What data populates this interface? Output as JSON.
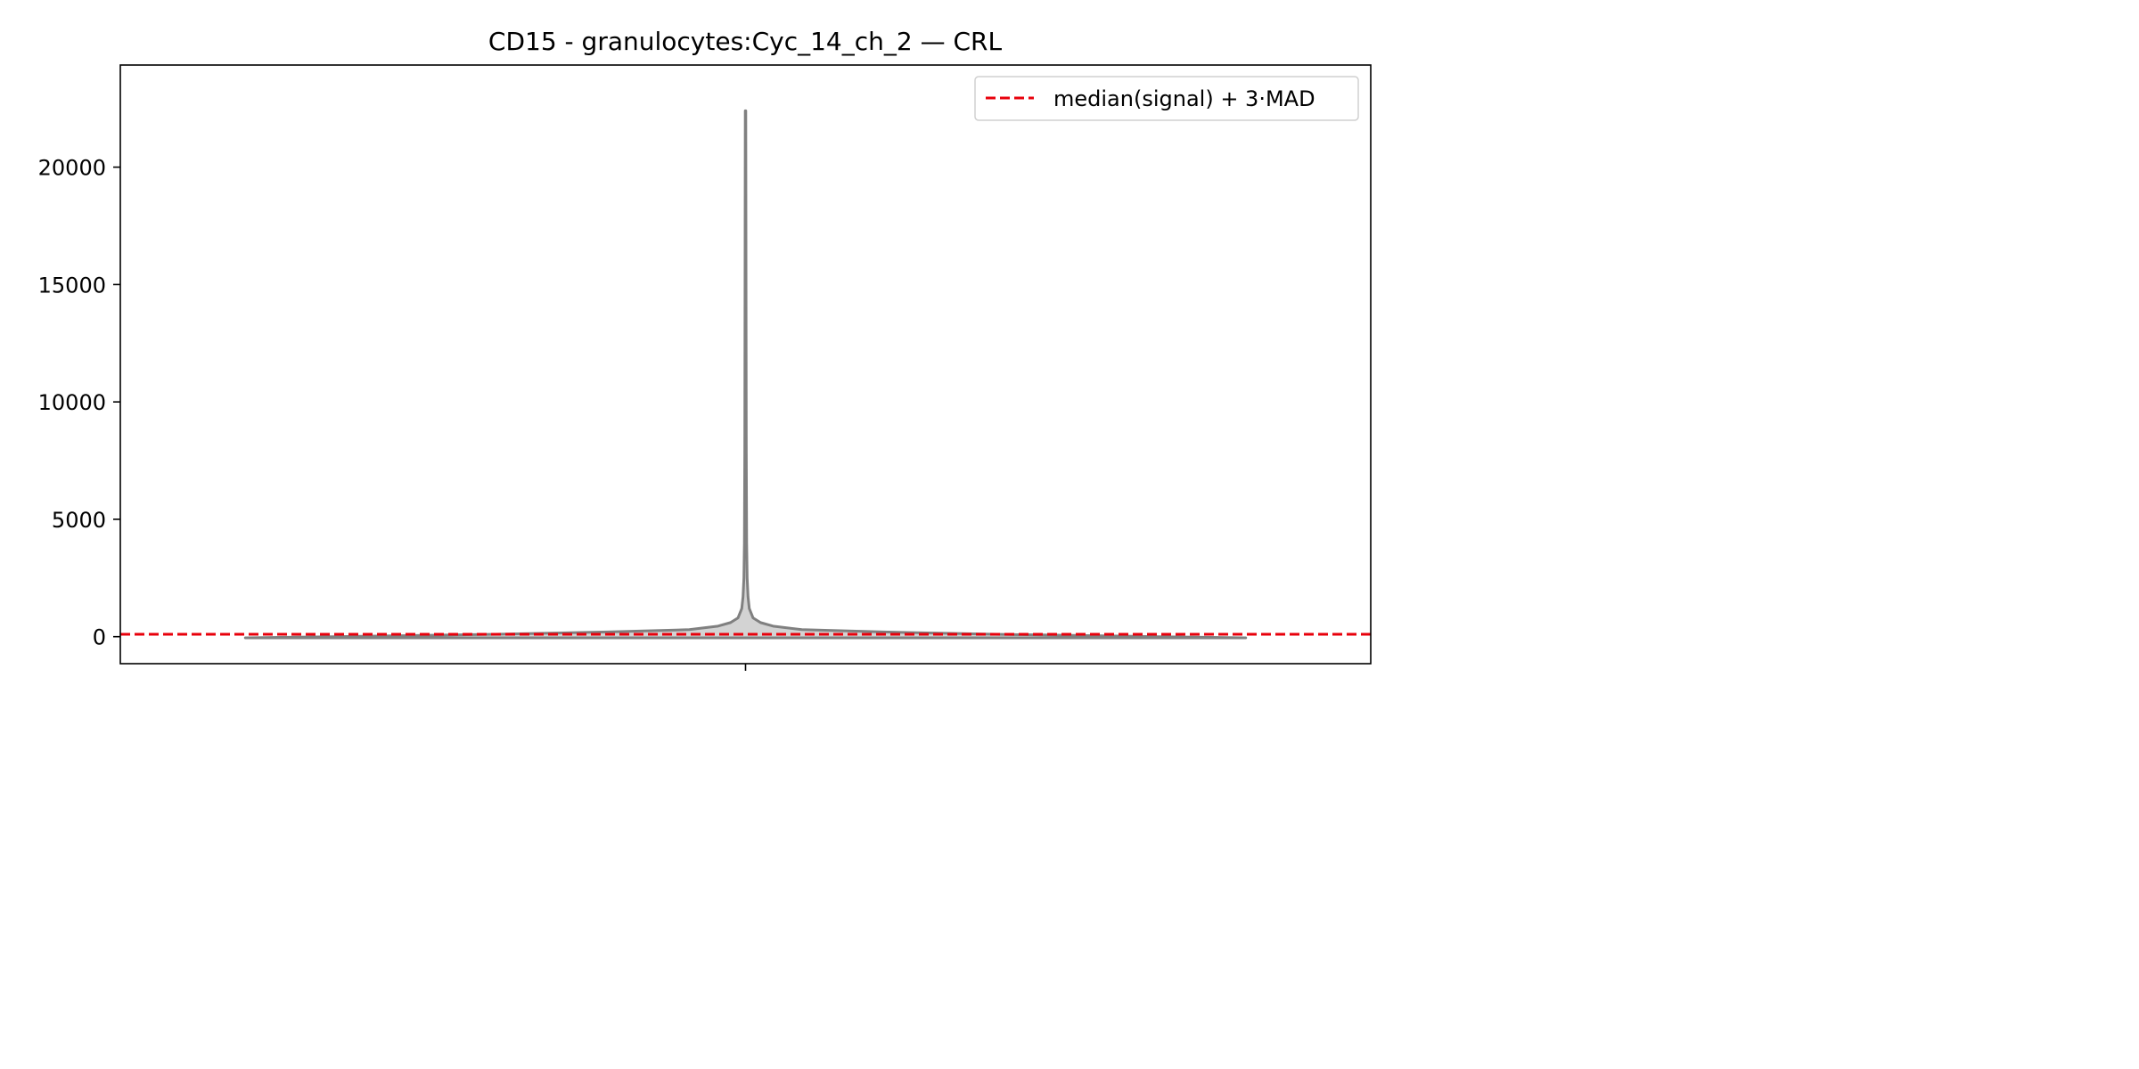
{
  "chart_data": {
    "type": "violin",
    "title": "CD15 - granulocytes:Cyc_14_ch_2 — CRL",
    "xlabel": "",
    "ylabel": "",
    "x_tick_labels": [
      ""
    ],
    "ylim": [
      -1150,
      24350
    ],
    "yticks": [
      0,
      5000,
      10000,
      15000,
      20000
    ],
    "ytick_labels": [
      "0",
      "5000",
      "10000",
      "15000",
      "20000"
    ],
    "grid": false,
    "legend": {
      "placement": "top-right",
      "entries": [
        "median(signal) + 3·MAD"
      ]
    },
    "threshold": {
      "name": "median(signal) + 3·MAD",
      "value": 100,
      "color": "#e8000b",
      "style": "dashed"
    },
    "violin": {
      "color_fill": "#d3d3d3",
      "color_edge": "#808080",
      "min": -50,
      "max": 22400,
      "density_profile": [
        {
          "y": -50,
          "half_width": 0.4
        },
        {
          "y": 0,
          "half_width": 0.33
        },
        {
          "y": 100,
          "half_width": 0.2
        },
        {
          "y": 200,
          "half_width": 0.11
        },
        {
          "y": 300,
          "half_width": 0.045
        },
        {
          "y": 450,
          "half_width": 0.022
        },
        {
          "y": 600,
          "half_width": 0.012
        },
        {
          "y": 800,
          "half_width": 0.006
        },
        {
          "y": 1200,
          "half_width": 0.003
        },
        {
          "y": 1700,
          "half_width": 0.002
        },
        {
          "y": 2500,
          "half_width": 0.0013
        },
        {
          "y": 4000,
          "half_width": 0.0009
        },
        {
          "y": 8000,
          "half_width": 0.0006
        },
        {
          "y": 15000,
          "half_width": 0.0004
        },
        {
          "y": 22400,
          "half_width": 0.0002
        }
      ]
    },
    "colors": {
      "axes": "#000000",
      "threshold": "#e8000b",
      "violin_fill": "#d3d3d3",
      "violin_edge": "#808080"
    }
  }
}
